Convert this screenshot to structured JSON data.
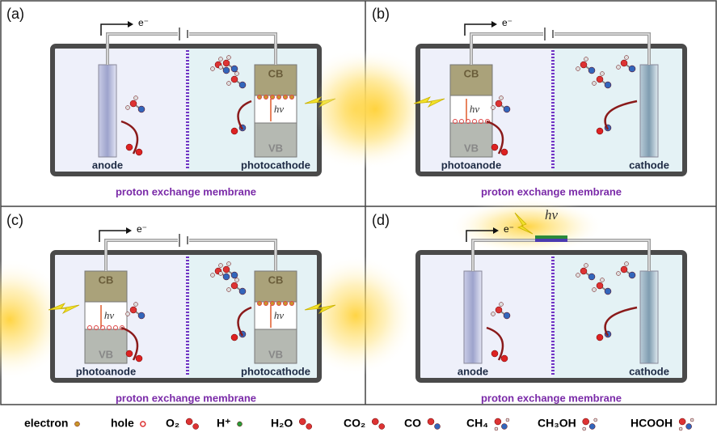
{
  "panels": [
    {
      "label": "(a)",
      "electron": "e⁻",
      "membrane": "proton exchange membrane",
      "left": {
        "name": "anode"
      },
      "right": {
        "name": "photocathode",
        "cb": "CB",
        "vb": "VB",
        "photon": "hν"
      }
    },
    {
      "label": "(b)",
      "electron": "e⁻",
      "membrane": "proton exchange membrane",
      "left": {
        "name": "photoanode",
        "cb": "CB",
        "vb": "VB",
        "photon": "hν"
      },
      "right": {
        "name": "cathode"
      }
    },
    {
      "label": "(c)",
      "electron": "e⁻",
      "membrane": "proton exchange membrane",
      "left": {
        "name": "photoanode",
        "cb": "CB",
        "vb": "VB",
        "photon": "hν"
      },
      "right": {
        "name": "photocathode",
        "cb": "CB",
        "vb": "VB",
        "photon": "hν"
      }
    },
    {
      "label": "(d)",
      "electron": "e⁻",
      "membrane": "proton exchange membrane",
      "pv_photon": "hν",
      "left": {
        "name": "anode"
      },
      "right": {
        "name": "cathode"
      }
    }
  ],
  "legend": [
    "electron",
    "hole",
    "O₂",
    "H⁺",
    "H₂O",
    "CO₂",
    "CO",
    "CH₄",
    "CH₃OH",
    "HCOOH"
  ]
}
